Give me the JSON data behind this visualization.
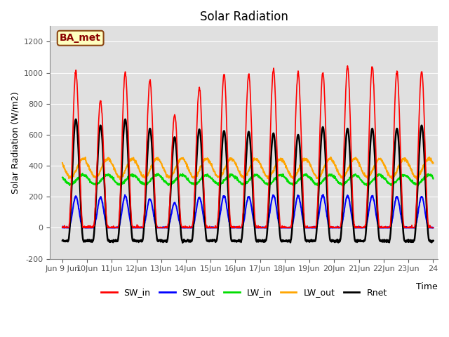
{
  "title": "Solar Radiation",
  "xlabel": "Time",
  "ylabel": "Solar Radiation (W/m2)",
  "ylim": [
    -200,
    1300
  ],
  "yticks": [
    -200,
    0,
    200,
    400,
    600,
    800,
    1000,
    1200
  ],
  "xlim_days": [
    8.5,
    24.2
  ],
  "xtick_days": [
    9,
    10,
    11,
    12,
    13,
    14,
    15,
    16,
    17,
    18,
    19,
    20,
    21,
    22,
    23,
    24
  ],
  "annotation_text": "BA_met",
  "annotation_fontsize": 10,
  "bg_color": "#e0e0e0",
  "fig_color": "#ffffff",
  "line_colors": {
    "SW_in": "#ff0000",
    "SW_out": "#0000ff",
    "LW_in": "#00dd00",
    "LW_out": "#ffa500",
    "Rnet": "#000000"
  },
  "line_widths": {
    "SW_in": 1.2,
    "SW_out": 1.5,
    "LW_in": 1.5,
    "LW_out": 1.5,
    "Rnet": 1.8
  },
  "legend_entries": [
    "SW_in",
    "SW_out",
    "LW_in",
    "LW_out",
    "Rnet"
  ],
  "n_days": 15,
  "start_day": 9,
  "dt_hours": 0.25,
  "SW_in_peaks": [
    1010,
    820,
    1000,
    950,
    730,
    900,
    990,
    990,
    1020,
    1000,
    1000,
    1040,
    1040,
    1010,
    1010
  ],
  "SW_out_peaks": [
    200,
    195,
    205,
    185,
    160,
    195,
    205,
    200,
    210,
    205,
    210,
    205,
    205,
    200,
    200
  ],
  "LW_in_base": 310,
  "LW_in_amplitude": 30,
  "LW_out_base": 385,
  "LW_out_amplitude": 60,
  "Rnet_peaks": [
    700,
    660,
    700,
    640,
    585,
    635,
    625,
    620,
    610,
    600,
    650,
    640,
    640,
    640,
    660
  ],
  "Rnet_night": -85,
  "title_fontsize": 12,
  "label_fontsize": 9,
  "tick_fontsize": 8
}
